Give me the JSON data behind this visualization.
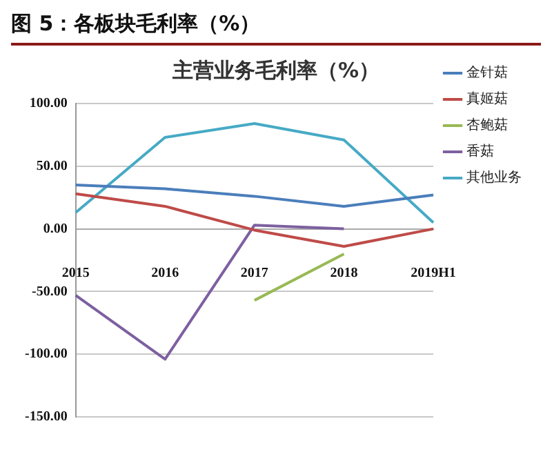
{
  "chart_data": {
    "type": "line",
    "title": "图 5：各板块毛利率（%）",
    "subtitle": "主营业务毛利率（%）",
    "categories": [
      "2015",
      "2016",
      "2017",
      "2018",
      "2019H1"
    ],
    "series": [
      {
        "name": "金针菇",
        "color": "#4a7ebb",
        "values": [
          35,
          32,
          26,
          18,
          27
        ]
      },
      {
        "name": "真姬菇",
        "color": "#be4b48",
        "values": [
          28,
          18,
          -1,
          -14,
          0
        ]
      },
      {
        "name": "杏鲍菇",
        "color": "#98b954",
        "values": [
          null,
          null,
          -57,
          -20,
          null
        ]
      },
      {
        "name": "香菇",
        "color": "#7d60a0",
        "values": [
          -53,
          -104,
          3,
          0,
          null
        ]
      },
      {
        "name": "其他业务",
        "color": "#46aac5",
        "values": [
          13,
          73,
          84,
          71,
          5
        ]
      }
    ],
    "ylim": [
      -150,
      100
    ],
    "yticks": [
      {
        "value": -150,
        "label": "-150.00"
      },
      {
        "value": -100,
        "label": "-100.00"
      },
      {
        "value": -50,
        "label": "-50.00"
      },
      {
        "value": 0,
        "label": "0.00"
      },
      {
        "value": 50,
        "label": "50.00"
      },
      {
        "value": 100,
        "label": "100.00"
      }
    ],
    "grid": "y",
    "legend": "right",
    "marker": "none",
    "line_style": "solid"
  }
}
